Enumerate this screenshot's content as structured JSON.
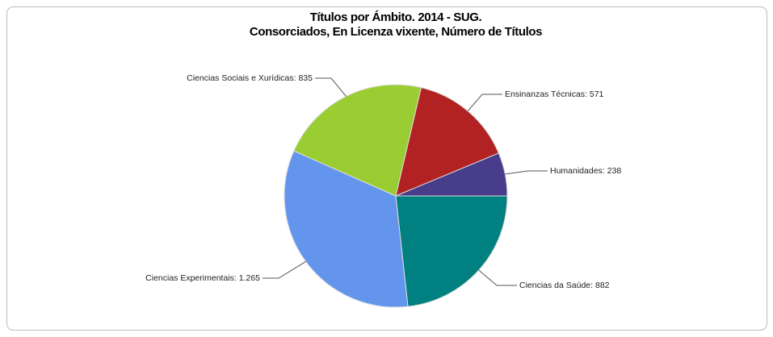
{
  "chart_data": {
    "type": "pie",
    "title": "Títulos por Ámbito. 2014 - SUG.",
    "subtitle": "Consorciados, En Licenza vixente, Número de Títulos",
    "categories": [
      "Ciencias da Saúde",
      "Ciencias Experimentais",
      "Ciencias Sociais e Xurídicas",
      "Ensinanzas Técnicas",
      "Humanidades"
    ],
    "values": [
      882,
      1265,
      835,
      571,
      238
    ],
    "value_labels": [
      "882",
      "1.265",
      "835",
      "571",
      "238"
    ],
    "colors": [
      "#008080",
      "#6495ed",
      "#9acd32",
      "#b22222",
      "#483d8b"
    ]
  }
}
